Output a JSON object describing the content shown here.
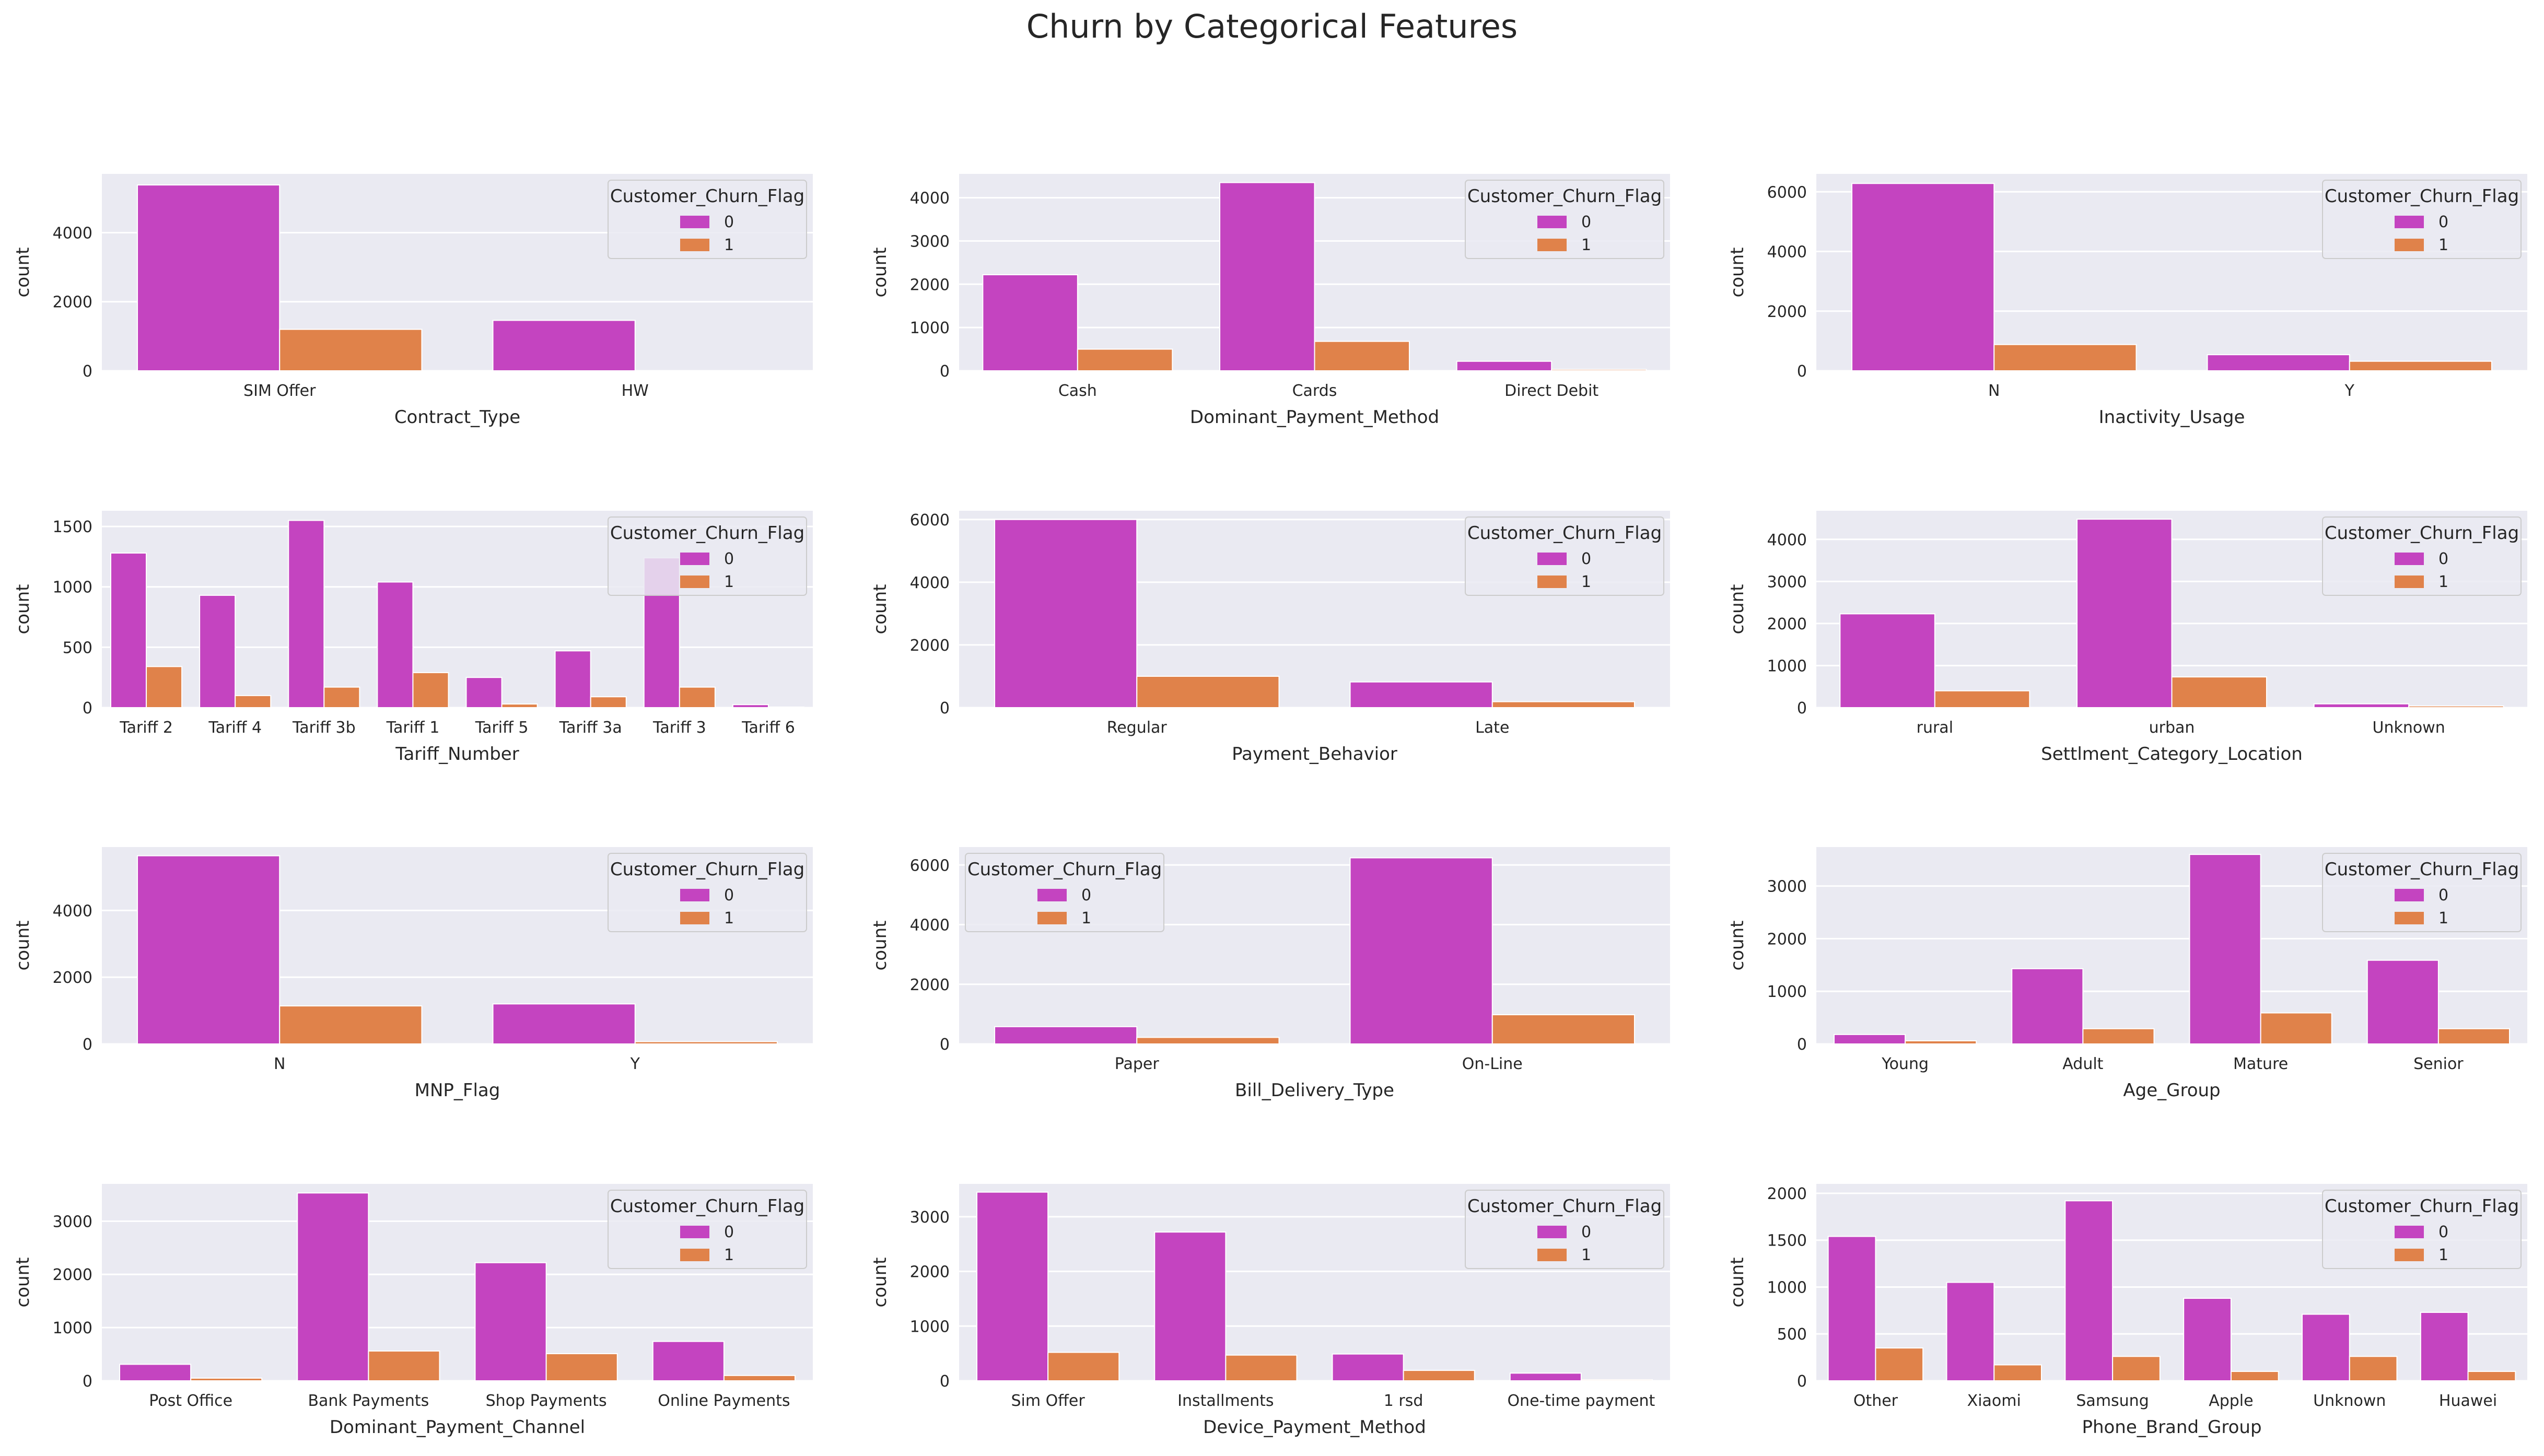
{
  "title": "Churn by Categorical Features",
  "colors": {
    "churn_0": "#c444c0",
    "churn_1": "#e0824a",
    "axes_bg": "#eaeaf2",
    "grid": "#ffffff"
  },
  "chart_data": [
    {
      "type": "bar",
      "xlabel": "Contract_Type",
      "ylabel": "count",
      "yticks": [
        0,
        2000,
        4000
      ],
      "ylim": [
        0,
        5700
      ],
      "categories": [
        "SIM Offer",
        "HW"
      ],
      "legend": {
        "title": "Customer_Churn_Flag",
        "placement": "upper right"
      },
      "series": [
        {
          "name": "0",
          "values": [
            5380,
            1460
          ]
        },
        {
          "name": "1",
          "values": [
            1200,
            0
          ]
        }
      ]
    },
    {
      "type": "bar",
      "xlabel": "Dominant_Payment_Method",
      "ylabel": "count",
      "yticks": [
        0,
        1000,
        2000,
        3000,
        4000
      ],
      "ylim": [
        0,
        4550
      ],
      "categories": [
        "Cash",
        "Cards",
        "Direct Debit"
      ],
      "legend": {
        "title": "Customer_Churn_Flag",
        "placement": "upper right"
      },
      "series": [
        {
          "name": "0",
          "values": [
            2220,
            4350,
            220
          ]
        },
        {
          "name": "1",
          "values": [
            500,
            680,
            30
          ]
        }
      ]
    },
    {
      "type": "bar",
      "xlabel": "Inactivity_Usage",
      "ylabel": "count",
      "yticks": [
        0,
        2000,
        4000,
        6000
      ],
      "ylim": [
        0,
        6600
      ],
      "categories": [
        "N",
        "Y"
      ],
      "legend": {
        "title": "Customer_Churn_Flag",
        "placement": "upper right"
      },
      "series": [
        {
          "name": "0",
          "values": [
            6280,
            540
          ]
        },
        {
          "name": "1",
          "values": [
            880,
            320
          ]
        }
      ]
    },
    {
      "type": "bar",
      "xlabel": "Tariff_Number",
      "ylabel": "count",
      "yticks": [
        0,
        500,
        1000,
        1500
      ],
      "ylim": [
        0,
        1630
      ],
      "categories": [
        "Tariff 2",
        "Tariff 4",
        "Tariff 3b",
        "Tariff 1",
        "Tariff 5",
        "Tariff 3a",
        "Tariff 3",
        "Tariff 6"
      ],
      "legend": {
        "title": "Customer_Churn_Flag",
        "placement": "upper right"
      },
      "series": [
        {
          "name": "0",
          "values": [
            1280,
            930,
            1550,
            1040,
            250,
            470,
            1240,
            25
          ]
        },
        {
          "name": "1",
          "values": [
            340,
            100,
            170,
            290,
            30,
            90,
            170,
            5
          ]
        }
      ]
    },
    {
      "type": "bar",
      "xlabel": "Payment_Behavior",
      "ylabel": "count",
      "yticks": [
        0,
        2000,
        4000,
        6000
      ],
      "ylim": [
        0,
        6280
      ],
      "categories": [
        "Regular",
        "Late"
      ],
      "legend": {
        "title": "Customer_Churn_Flag",
        "placement": "upper right"
      },
      "series": [
        {
          "name": "0",
          "values": [
            6000,
            820
          ]
        },
        {
          "name": "1",
          "values": [
            1000,
            190
          ]
        }
      ]
    },
    {
      "type": "bar",
      "xlabel": "Settlment_Category_Location",
      "ylabel": "count",
      "yticks": [
        0,
        1000,
        2000,
        3000,
        4000
      ],
      "ylim": [
        0,
        4680
      ],
      "categories": [
        "rural",
        "urban",
        "Unknown"
      ],
      "legend": {
        "title": "Customer_Churn_Flag",
        "placement": "upper right"
      },
      "series": [
        {
          "name": "0",
          "values": [
            2230,
            4480,
            90
          ]
        },
        {
          "name": "1",
          "values": [
            400,
            730,
            40
          ]
        }
      ]
    },
    {
      "type": "bar",
      "xlabel": "MNP_Flag",
      "ylabel": "count",
      "yticks": [
        0,
        2000,
        4000
      ],
      "ylim": [
        0,
        5900
      ],
      "categories": [
        "N",
        "Y"
      ],
      "legend": {
        "title": "Customer_Churn_Flag",
        "placement": "upper right"
      },
      "series": [
        {
          "name": "0",
          "values": [
            5640,
            1200
          ]
        },
        {
          "name": "1",
          "values": [
            1140,
            70
          ]
        }
      ]
    },
    {
      "type": "bar",
      "xlabel": "Bill_Delivery_Type",
      "ylabel": "count",
      "yticks": [
        0,
        2000,
        4000,
        6000
      ],
      "ylim": [
        0,
        6600
      ],
      "categories": [
        "Paper",
        "On-Line"
      ],
      "legend": {
        "title": "Customer_Churn_Flag",
        "placement": "upper left"
      },
      "series": [
        {
          "name": "0",
          "values": [
            580,
            6240
          ]
        },
        {
          "name": "1",
          "values": [
            220,
            980
          ]
        }
      ]
    },
    {
      "type": "bar",
      "xlabel": "Age_Group",
      "ylabel": "count",
      "yticks": [
        0,
        1000,
        2000,
        3000
      ],
      "ylim": [
        0,
        3740
      ],
      "categories": [
        "Young",
        "Adult",
        "Mature",
        "Senior"
      ],
      "legend": {
        "title": "Customer_Churn_Flag",
        "placement": "upper right"
      },
      "series": [
        {
          "name": "0",
          "values": [
            180,
            1430,
            3600,
            1590
          ]
        },
        {
          "name": "1",
          "values": [
            60,
            290,
            590,
            290
          ]
        }
      ]
    },
    {
      "type": "bar",
      "xlabel": "Dominant_Payment_Channel",
      "ylabel": "count",
      "yticks": [
        0,
        1000,
        2000,
        3000
      ],
      "ylim": [
        0,
        3700
      ],
      "categories": [
        "Post Office",
        "Bank Payments",
        "Shop Payments",
        "Online Payments"
      ],
      "legend": {
        "title": "Customer_Churn_Flag",
        "placement": "upper right"
      },
      "series": [
        {
          "name": "0",
          "values": [
            310,
            3530,
            2220,
            740
          ]
        },
        {
          "name": "1",
          "values": [
            50,
            560,
            510,
            100
          ]
        }
      ]
    },
    {
      "type": "bar",
      "xlabel": "Device_Payment_Method",
      "ylabel": "count",
      "yticks": [
        0,
        1000,
        2000,
        3000
      ],
      "ylim": [
        0,
        3600
      ],
      "categories": [
        "Sim Offer",
        "Installments",
        "1 rsd",
        "One-time payment"
      ],
      "legend": {
        "title": "Customer_Churn_Flag",
        "placement": "upper right"
      },
      "series": [
        {
          "name": "0",
          "values": [
            3450,
            2720,
            490,
            140
          ]
        },
        {
          "name": "1",
          "values": [
            520,
            470,
            190,
            20
          ]
        }
      ]
    },
    {
      "type": "bar",
      "xlabel": "Phone_Brand_Group",
      "ylabel": "count",
      "yticks": [
        0,
        500,
        1000,
        1500,
        2000
      ],
      "ylim": [
        0,
        2100
      ],
      "categories": [
        "Other",
        "Xiaomi",
        "Samsung",
        "Apple",
        "Unknown",
        "Huawei"
      ],
      "legend": {
        "title": "Customer_Churn_Flag",
        "placement": "upper right"
      },
      "series": [
        {
          "name": "0",
          "values": [
            1540,
            1050,
            1920,
            880,
            710,
            730
          ]
        },
        {
          "name": "1",
          "values": [
            350,
            170,
            260,
            100,
            260,
            100
          ]
        }
      ]
    }
  ]
}
